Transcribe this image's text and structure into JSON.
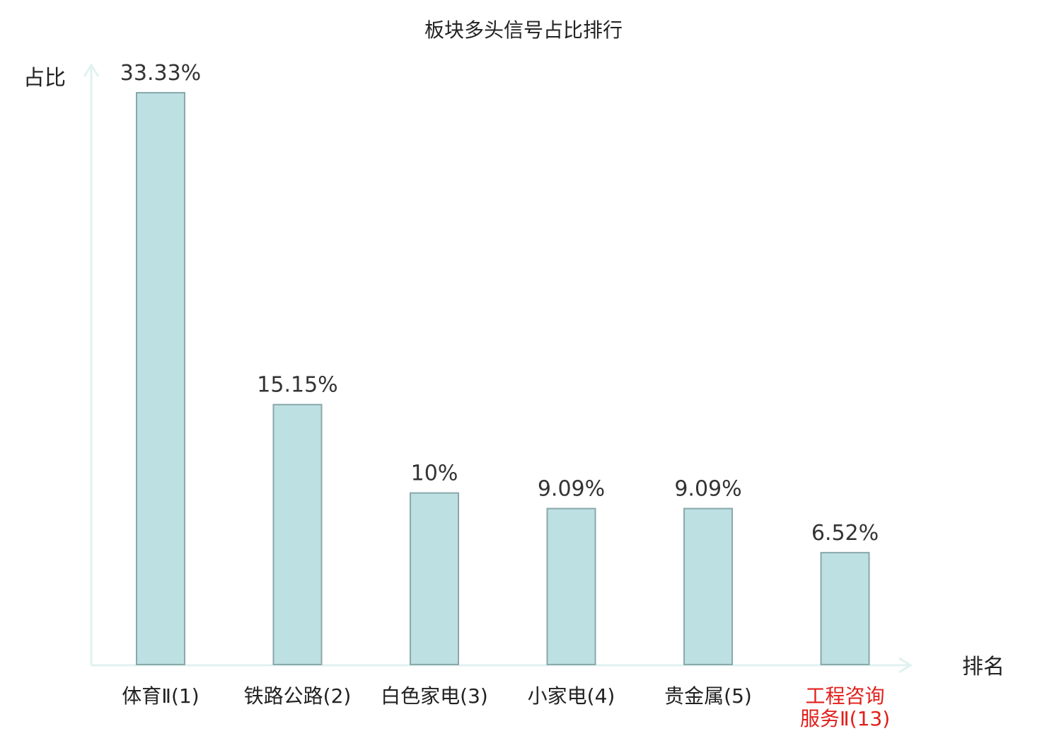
{
  "chart_data": {
    "type": "bar",
    "title": "板块多头信号占比排行",
    "ylabel": "占比",
    "xlabel": "排名",
    "categories": [
      {
        "lines": [
          "体育Ⅱ(1)"
        ],
        "highlight": false
      },
      {
        "lines": [
          "铁路公路(2)"
        ],
        "highlight": false
      },
      {
        "lines": [
          "白色家电(3)"
        ],
        "highlight": false
      },
      {
        "lines": [
          "小家电(4)"
        ],
        "highlight": false
      },
      {
        "lines": [
          "贵金属(5)"
        ],
        "highlight": false
      },
      {
        "lines": [
          "工程咨询",
          "服务Ⅱ(13)"
        ],
        "highlight": true
      }
    ],
    "values": [
      33.33,
      15.15,
      10,
      9.09,
      9.09,
      6.52
    ],
    "value_labels": [
      "33.33%",
      "15.15%",
      "10%",
      "9.09%",
      "9.09%",
      "6.52%"
    ],
    "ylim": [
      0,
      33.33
    ],
    "grid": false,
    "colors": {
      "bar_fill": "#bde0e3",
      "bar_stroke": "#8aa8ab",
      "axis": "#e0f2ef",
      "label_normal": "#222222",
      "label_highlight": "#e0201c"
    }
  }
}
